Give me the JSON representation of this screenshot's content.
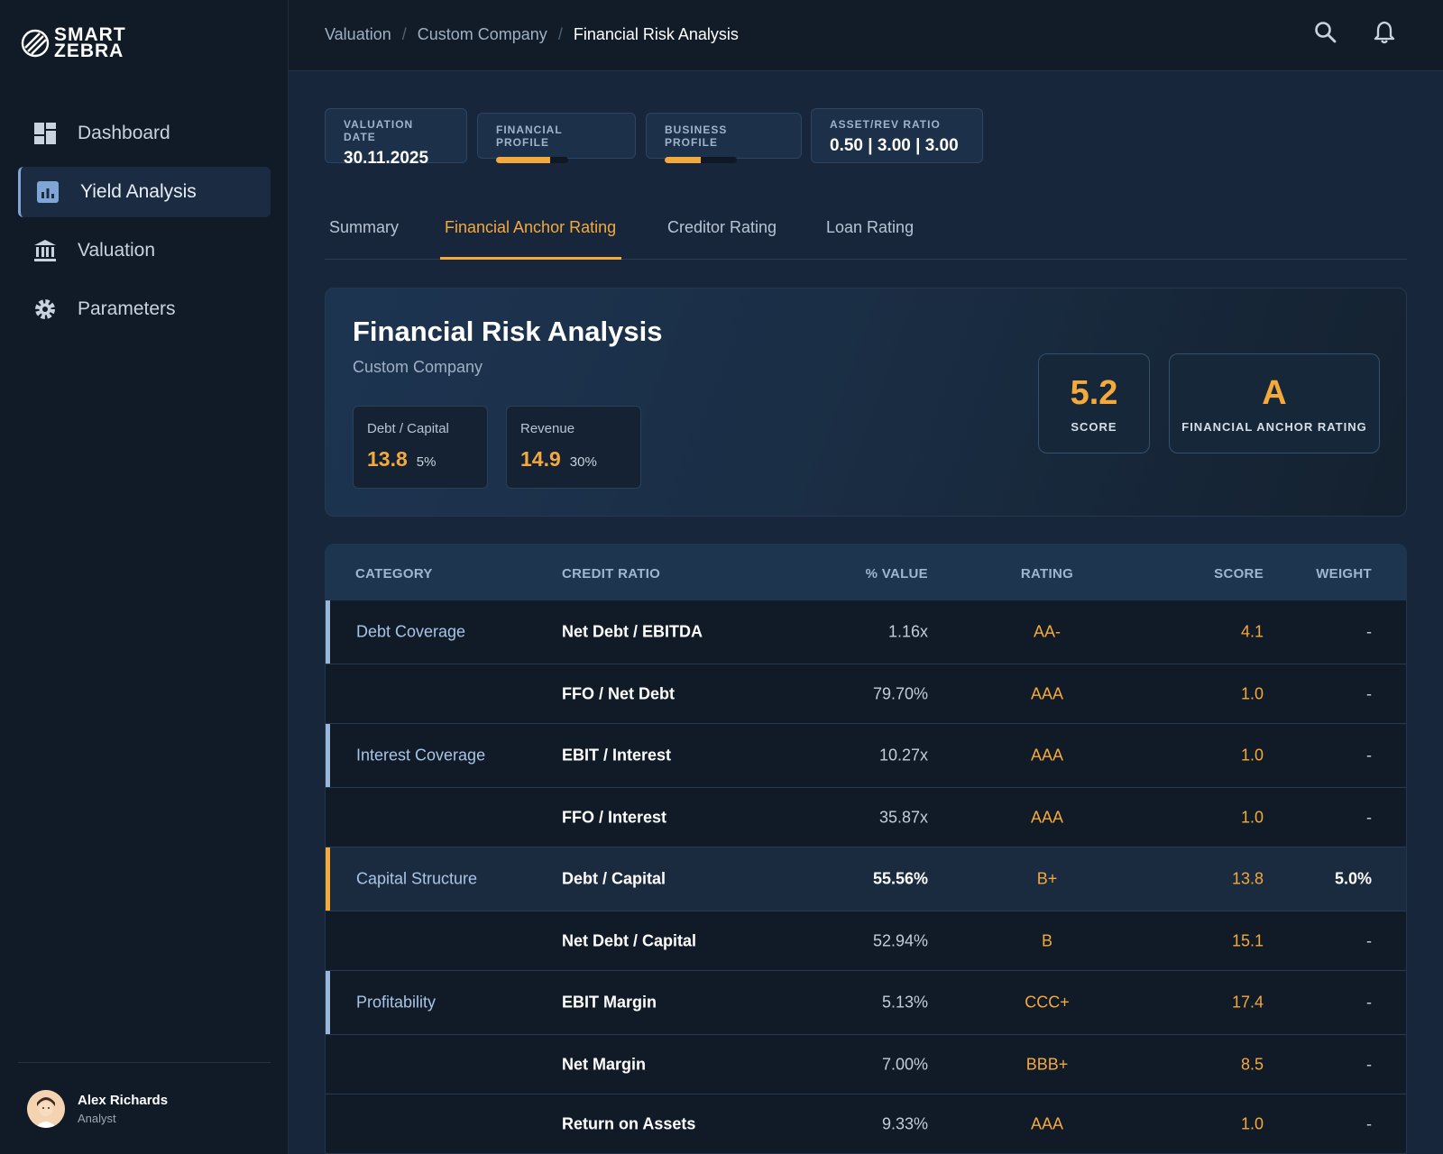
{
  "app": {
    "logo_line1": "SMART",
    "logo_line2": "ZEBRA"
  },
  "sidebar": {
    "items": [
      {
        "label": "Dashboard",
        "icon": "dashboard-icon"
      },
      {
        "label": "Yield Analysis",
        "icon": "chart-icon",
        "active": true
      },
      {
        "label": "Valuation",
        "icon": "bank-icon"
      },
      {
        "label": "Parameters",
        "icon": "gear-icon"
      }
    ],
    "user": {
      "name": "Alex Richards",
      "role": "Analyst"
    }
  },
  "breadcrumb": [
    "Valuation",
    "Custom Company",
    "Financial Risk Analysis"
  ],
  "chips": {
    "valuation_date_label": "VALUATION DATE",
    "valuation_date": "30.11.2025",
    "financial_profile_label": "FINANCIAL PROFILE",
    "financial_profile_level": 0.75,
    "business_profile_label": "BUSINESS PROFILE",
    "business_profile_level": 0.5,
    "asset_rev_label": "ASSET/REV RATIO",
    "asset_rev_value": "0.50 | 3.00 | 3.00"
  },
  "tabs": [
    "Summary",
    "Financial Anchor Rating",
    "Creditor Rating",
    "Loan Rating"
  ],
  "hero": {
    "title": "Financial Risk Analysis",
    "subtitle": "Custom Company",
    "metrics": [
      {
        "label": "Debt / Capital",
        "value": "13.8",
        "pct": "5%"
      },
      {
        "label": "Revenue",
        "value": "14.9",
        "pct": "30%"
      }
    ],
    "score_value": "5.2",
    "score_label": "SCORE",
    "rating_value": "A",
    "rating_label": "FINANCIAL ANCHOR RATING"
  },
  "table": {
    "headers": {
      "category": "CATEGORY",
      "ratio": "CREDIT RATIO",
      "value": "% VALUE",
      "rating": "RATING",
      "score": "SCORE",
      "weight": "WEIGHT"
    },
    "rows": [
      {
        "category": "Debt Coverage",
        "ratio": "Net Debt / EBITDA",
        "value": "1.16x",
        "rating": "AA-",
        "score": "4.1",
        "weight": "-"
      },
      {
        "category": "",
        "ratio": "FFO / Net Debt",
        "value": "79.70%",
        "rating": "AAA",
        "score": "1.0",
        "weight": "-"
      },
      {
        "category": "Interest Coverage",
        "ratio": "EBIT / Interest",
        "value": "10.27x",
        "rating": "AAA",
        "score": "1.0",
        "weight": "-"
      },
      {
        "category": "",
        "ratio": "FFO / Interest",
        "value": "35.87x",
        "rating": "AAA",
        "score": "1.0",
        "weight": "-"
      },
      {
        "category": "Capital Structure",
        "ratio": "Debt / Capital",
        "value": "55.56%",
        "rating": "B+",
        "score": "13.8",
        "weight": "5.0%"
      },
      {
        "category": "",
        "ratio": "Net Debt / Capital",
        "value": "52.94%",
        "rating": "B",
        "score": "15.1",
        "weight": "-"
      },
      {
        "category": "Profitability",
        "ratio": "EBIT Margin",
        "value": "5.13%",
        "rating": "CCC+",
        "score": "17.4",
        "weight": "-"
      },
      {
        "category": "",
        "ratio": "Net Margin",
        "value": "7.00%",
        "rating": "BBB+",
        "score": "8.5",
        "weight": "-"
      },
      {
        "category": "",
        "ratio": "Return on Assets",
        "value": "9.33%",
        "rating": "AAA",
        "score": "1.0",
        "weight": "-"
      }
    ]
  },
  "colors": {
    "accent": "#f3a93c",
    "sidebar_bg": "#111b27",
    "content_bg": "#17263a",
    "table_header_bg": "#1e3550"
  }
}
